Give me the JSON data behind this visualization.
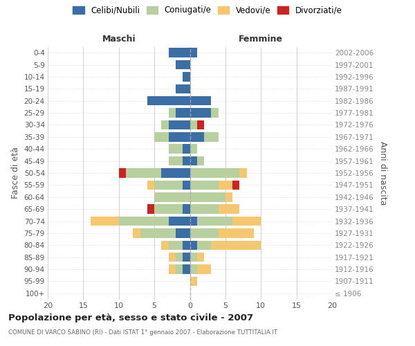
{
  "age_groups": [
    "100+",
    "95-99",
    "90-94",
    "85-89",
    "80-84",
    "75-79",
    "70-74",
    "65-69",
    "60-64",
    "55-59",
    "50-54",
    "45-49",
    "40-44",
    "35-39",
    "30-34",
    "25-29",
    "20-24",
    "15-19",
    "10-14",
    "5-9",
    "0-4"
  ],
  "birth_years": [
    "≤ 1906",
    "1907-1911",
    "1912-1916",
    "1917-1921",
    "1922-1926",
    "1927-1931",
    "1932-1936",
    "1937-1941",
    "1942-1946",
    "1947-1951",
    "1952-1956",
    "1957-1961",
    "1962-1966",
    "1967-1971",
    "1972-1976",
    "1977-1981",
    "1982-1986",
    "1987-1991",
    "1992-1996",
    "1997-2001",
    "2002-2006"
  ],
  "maschi": {
    "celibi": [
      0,
      0,
      1,
      1,
      1,
      2,
      3,
      1,
      0,
      1,
      4,
      1,
      1,
      3,
      3,
      2,
      6,
      2,
      1,
      2,
      3
    ],
    "coniugati": [
      0,
      0,
      1,
      1,
      2,
      5,
      7,
      4,
      5,
      4,
      5,
      2,
      2,
      2,
      1,
      1,
      0,
      0,
      0,
      0,
      0
    ],
    "vedovi": [
      0,
      0,
      1,
      1,
      1,
      1,
      4,
      0,
      0,
      1,
      0,
      0,
      0,
      0,
      0,
      0,
      0,
      0,
      0,
      0,
      0
    ],
    "divorziati": [
      0,
      0,
      0,
      0,
      0,
      0,
      0,
      1,
      0,
      0,
      1,
      0,
      0,
      0,
      0,
      0,
      0,
      0,
      0,
      0,
      0
    ]
  },
  "femmine": {
    "nubili": [
      0,
      0,
      0,
      0,
      1,
      0,
      1,
      0,
      0,
      0,
      0,
      1,
      0,
      2,
      0,
      3,
      3,
      0,
      0,
      0,
      1
    ],
    "coniugate": [
      0,
      0,
      1,
      1,
      2,
      4,
      5,
      4,
      5,
      4,
      7,
      1,
      1,
      2,
      1,
      1,
      0,
      0,
      0,
      0,
      0
    ],
    "vedove": [
      0,
      1,
      2,
      1,
      7,
      5,
      4,
      3,
      1,
      2,
      1,
      0,
      0,
      0,
      0,
      0,
      0,
      0,
      0,
      0,
      0
    ],
    "divorziate": [
      0,
      0,
      0,
      0,
      0,
      0,
      0,
      0,
      0,
      1,
      0,
      0,
      0,
      0,
      1,
      0,
      0,
      0,
      0,
      0,
      0
    ]
  },
  "colors": {
    "celibi": "#3a6ea5",
    "coniugati": "#b8cfa0",
    "vedovi": "#f5c76e",
    "divorziati": "#cc2222"
  },
  "xlim": 20,
  "title": "Popolazione per età, sesso e stato civile - 2007",
  "subtitle": "COMUNE DI VARCO SABINO (RI) - Dati ISTAT 1° gennaio 2007 - Elaborazione TUTTITALIA.IT",
  "ylabel_left": "Fasce di età",
  "ylabel_right": "Anni di nascita",
  "xlabel_maschi": "Maschi",
  "xlabel_femmine": "Femmine",
  "bg_color": "#ffffff",
  "grid_color": "#d0d0d0",
  "legend_labels": [
    "Celibi/Nubili",
    "Coniugati/e",
    "Vedovi/e",
    "Divorziati/e"
  ]
}
